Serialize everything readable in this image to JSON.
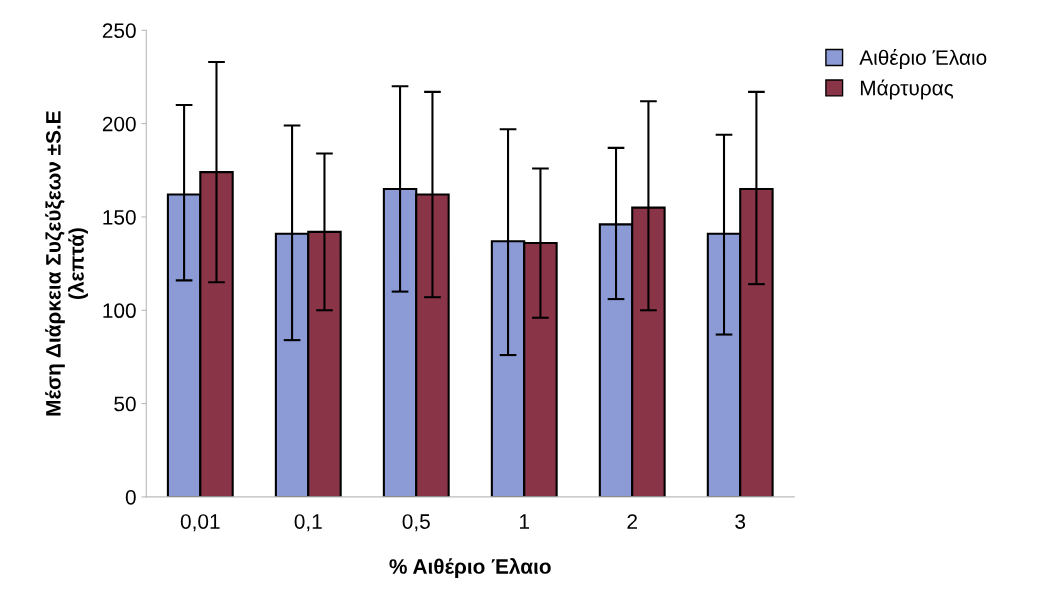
{
  "chart_data": {
    "type": "bar",
    "xlabel": "% Αιθέριο Έλαιο",
    "ylabel": "Μέση Διάρκεια Συζεύξεων ±S.E\n(λεπτά)",
    "categories": [
      "0,01",
      "0,1",
      "0,5",
      "1",
      "2",
      "3"
    ],
    "series": [
      {
        "name": "Αιθέριο Έλαιο",
        "color": "#8c9bd6",
        "values": [
          162,
          141,
          165,
          137,
          146,
          141
        ],
        "errors": [
          [
            116,
            210
          ],
          [
            84,
            199
          ],
          [
            110,
            220
          ],
          [
            76,
            197
          ],
          [
            106,
            187
          ],
          [
            87,
            194
          ]
        ]
      },
      {
        "name": "Μάρτυρας",
        "color": "#8a3547",
        "values": [
          174,
          142,
          162,
          136,
          155,
          165
        ],
        "errors": [
          [
            115,
            233
          ],
          [
            100,
            184
          ],
          [
            107,
            217
          ],
          [
            96,
            176
          ],
          [
            100,
            212
          ],
          [
            114,
            217
          ]
        ]
      }
    ],
    "ylim": [
      0,
      250
    ],
    "yticks": [
      0,
      50,
      100,
      150,
      200,
      250
    ],
    "grid": false,
    "legend": "top right"
  }
}
